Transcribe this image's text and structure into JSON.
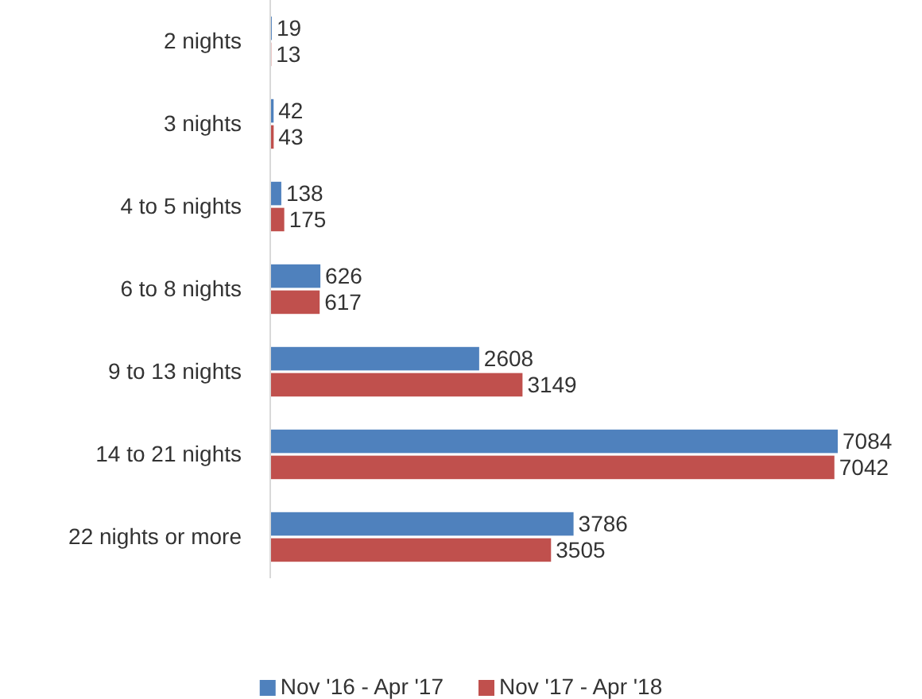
{
  "chart_data": {
    "type": "bar",
    "orientation": "horizontal",
    "categories": [
      "2 nights",
      "3 nights",
      "4 to 5 nights",
      "6 to 8 nights",
      "9 to 13 nights",
      "14 to 21 nights",
      "22 nights or more"
    ],
    "series": [
      {
        "name": "Nov '16 - Apr '17",
        "color": "#4f81bd",
        "values": [
          19,
          42,
          138,
          626,
          2608,
          7084,
          3786
        ]
      },
      {
        "name": "Nov '17 - Apr '18",
        "color": "#c0504d",
        "values": [
          13,
          43,
          175,
          617,
          3149,
          7042,
          3505
        ]
      }
    ],
    "data_labels": true,
    "legend": "bottom"
  }
}
